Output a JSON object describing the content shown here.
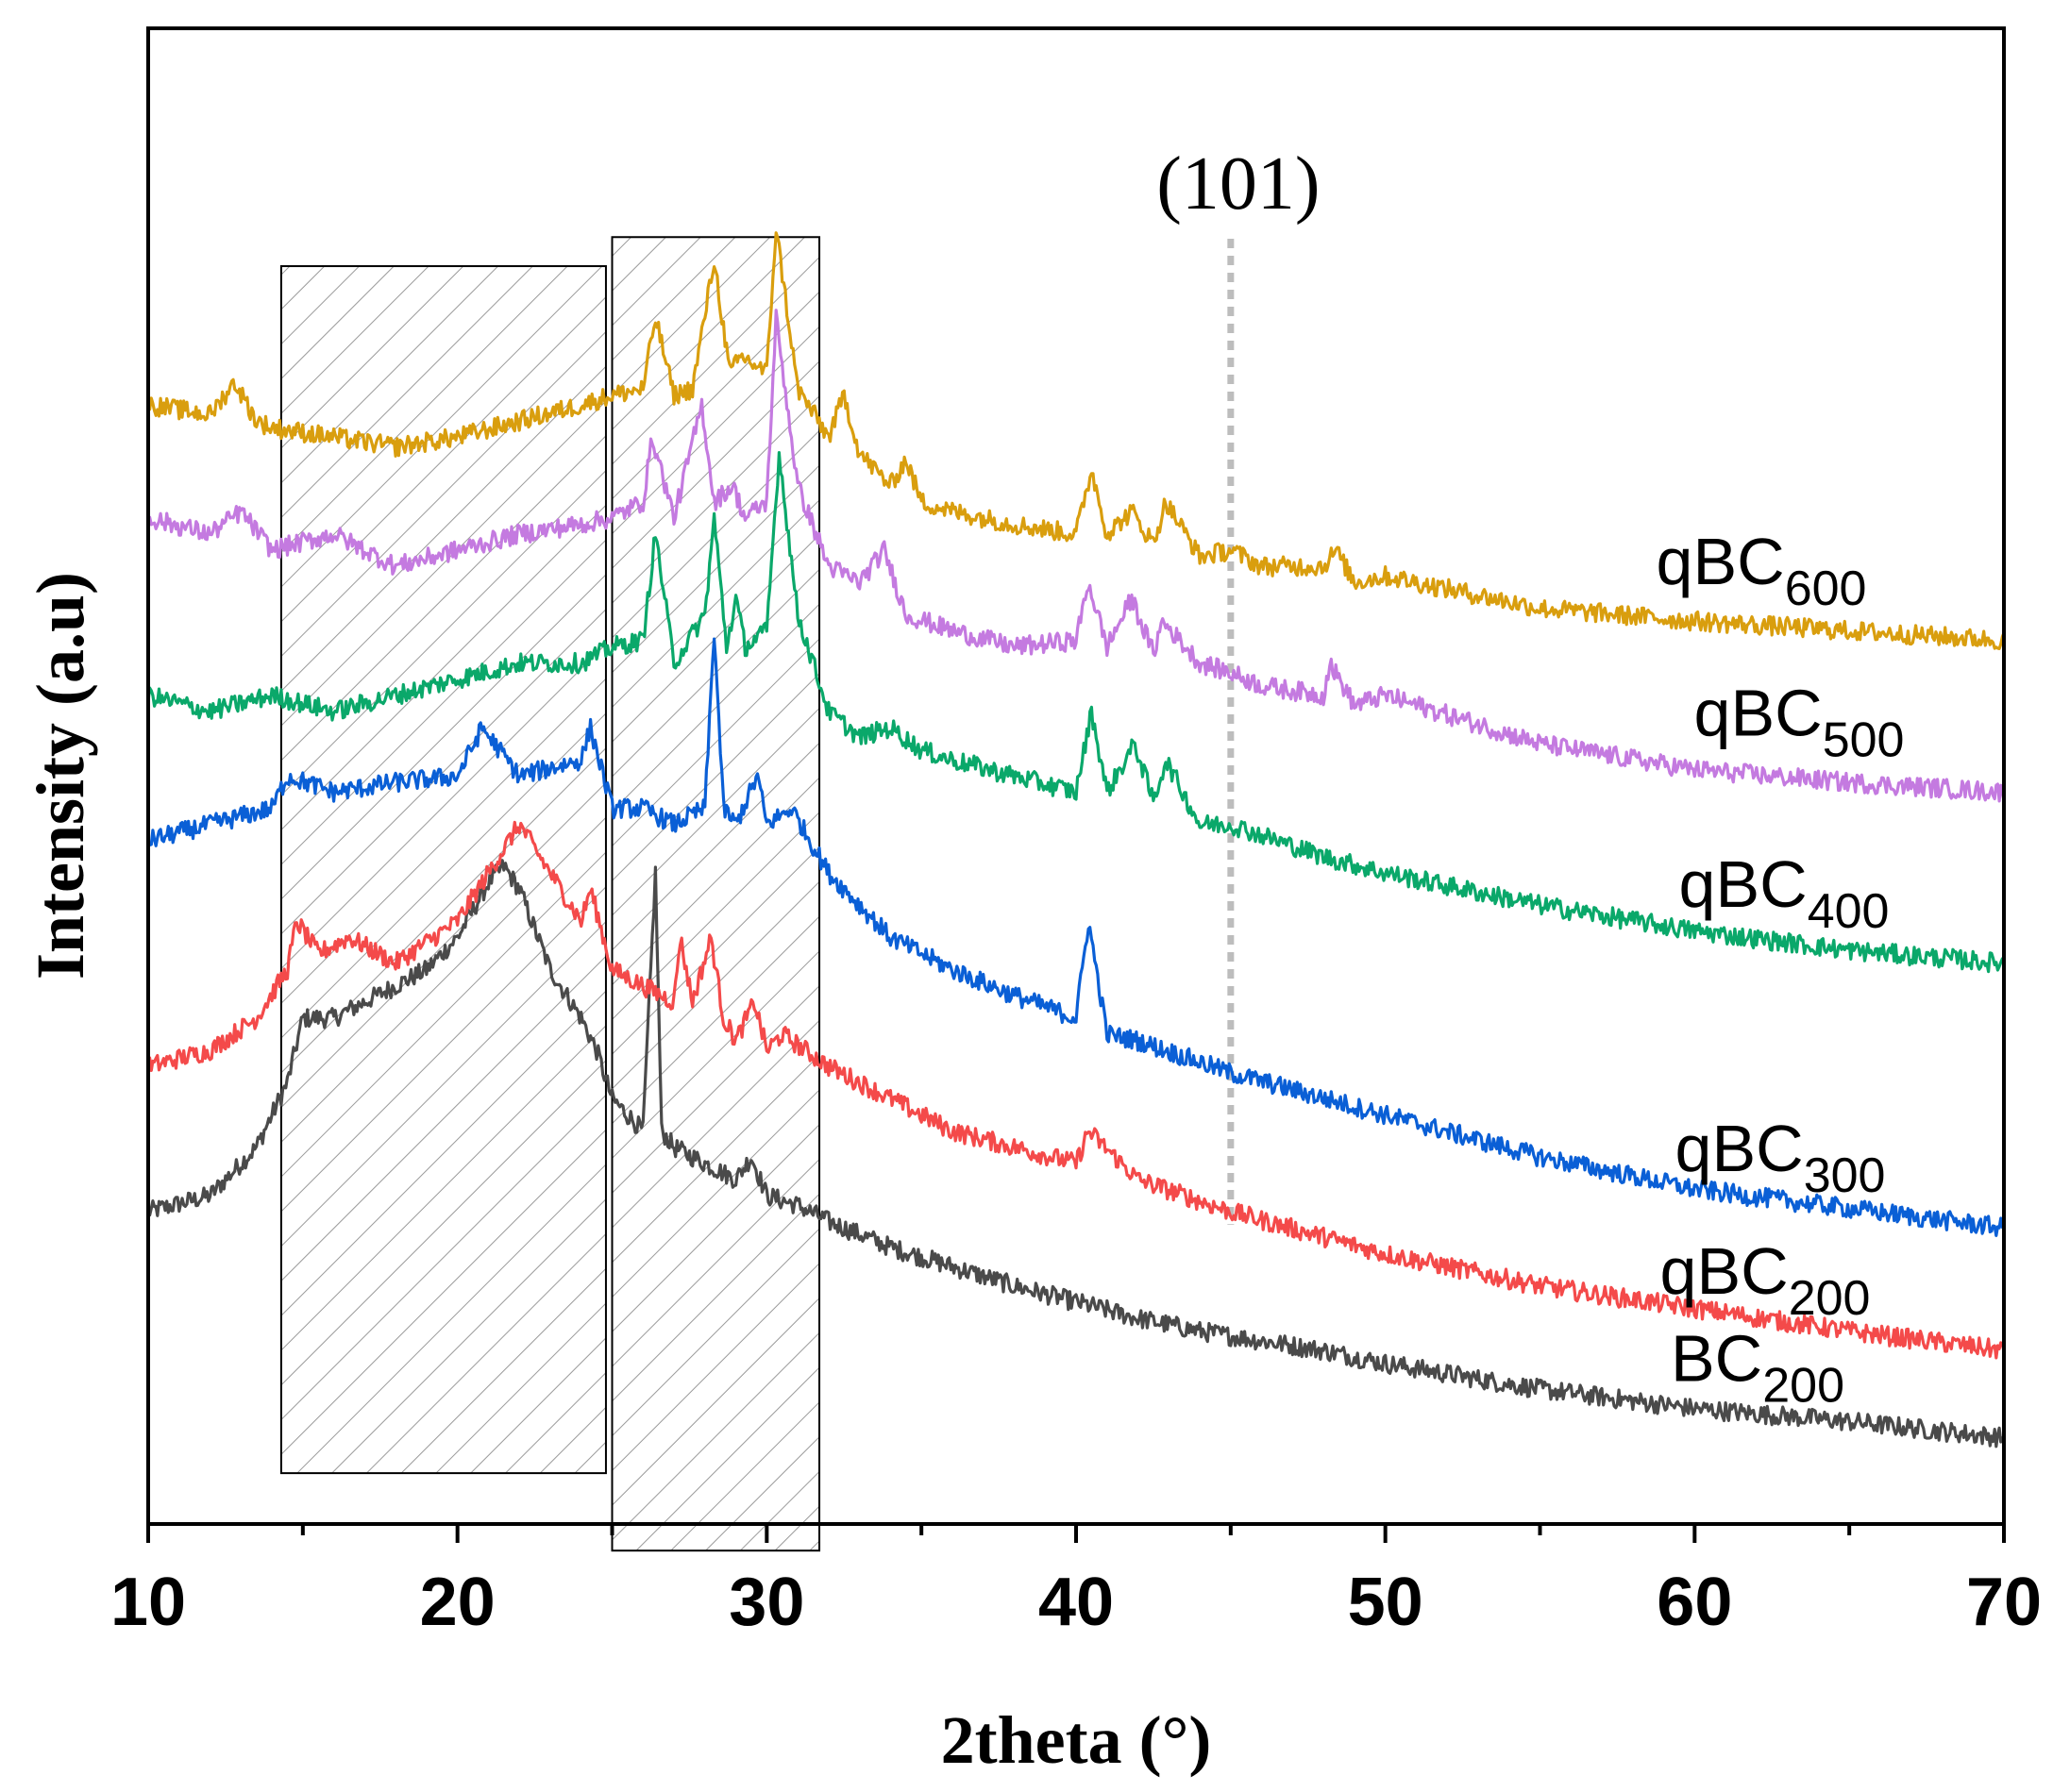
{
  "chart_data": {
    "type": "line",
    "title": "",
    "xlabel": "2theta (°)",
    "ylabel": "Intensity (a.u)",
    "xlim": [
      10,
      70
    ],
    "xticks": [
      10,
      20,
      30,
      40,
      50,
      60,
      70
    ],
    "yticks_shown": false,
    "grid": false,
    "annotations": [
      {
        "text": "(101)",
        "x": 45,
        "marker": "dashed-vertical-line",
        "ymin": 0.91,
        "ymax": 4.0
      }
    ],
    "shaded_regions": [
      {
        "x_start": 14.3,
        "x_end": 24.8,
        "y_min": 0.14,
        "y_max": 3.88,
        "pattern": "diagonal-hatch"
      },
      {
        "x_start": 25.0,
        "x_end": 31.7,
        "y_min": -0.1,
        "y_max": 3.97,
        "pattern": "diagonal-hatch"
      }
    ],
    "series": [
      {
        "name": "BC200",
        "label_main": "BC",
        "label_sub": "200",
        "color": "#4a4a4a",
        "x": [
          10,
          12,
          13.5,
          14.5,
          15,
          16,
          17,
          18,
          19,
          20,
          21,
          21.5,
          22,
          23,
          24,
          24.5,
          25,
          26,
          26.4,
          26.6,
          27,
          28,
          29,
          29.5,
          30,
          31,
          32,
          34,
          36,
          38,
          40,
          42,
          44,
          46,
          48,
          50,
          55,
          60,
          65,
          70
        ],
        "y": [
          0.95,
          1.0,
          1.15,
          1.35,
          1.55,
          1.55,
          1.6,
          1.65,
          1.7,
          1.8,
          1.97,
          2.02,
          1.95,
          1.7,
          1.55,
          1.45,
          1.3,
          1.2,
          2.0,
          1.2,
          1.15,
          1.1,
          1.05,
          1.12,
          1.0,
          0.97,
          0.92,
          0.84,
          0.78,
          0.72,
          0.67,
          0.62,
          0.58,
          0.55,
          0.52,
          0.48,
          0.4,
          0.34,
          0.3,
          0.25
        ]
      },
      {
        "name": "qBC200",
        "label_main": "qBC",
        "label_sub": "200",
        "color": "#f44a4a",
        "x": [
          10,
          12,
          13.5,
          14.5,
          14.8,
          15.5,
          16.5,
          18,
          20,
          21,
          22,
          23,
          24,
          24.3,
          25,
          26,
          27,
          27.2,
          27.6,
          28.2,
          28.6,
          29,
          29.6,
          30,
          30.5,
          32,
          34,
          36,
          38,
          40,
          40.4,
          42,
          45,
          50,
          55,
          60,
          65,
          70
        ],
        "y": [
          1.4,
          1.45,
          1.55,
          1.7,
          1.85,
          1.75,
          1.8,
          1.72,
          1.85,
          2.0,
          2.15,
          2.0,
          1.85,
          1.95,
          1.7,
          1.65,
          1.6,
          1.8,
          1.6,
          1.8,
          1.55,
          1.48,
          1.6,
          1.45,
          1.5,
          1.4,
          1.3,
          1.2,
          1.15,
          1.1,
          1.2,
          1.05,
          0.95,
          0.82,
          0.72,
          0.65,
          0.58,
          0.52
        ]
      },
      {
        "name": "qBC300",
        "label_main": "qBC",
        "label_sub": "300",
        "color": "#0a5fd6",
        "x": [
          10,
          12,
          14,
          14.5,
          16,
          18,
          20,
          20.8,
          22,
          24,
          24.3,
          25,
          26,
          27,
          28,
          28.3,
          28.6,
          29,
          29.7,
          30,
          30.8,
          32,
          34,
          36,
          38,
          40,
          40.4,
          41,
          42,
          45,
          50,
          55,
          60,
          65,
          70
        ],
        "y": [
          2.1,
          2.15,
          2.2,
          2.3,
          2.25,
          2.28,
          2.3,
          2.45,
          2.3,
          2.35,
          2.45,
          2.2,
          2.2,
          2.15,
          2.2,
          2.75,
          2.2,
          2.15,
          2.3,
          2.15,
          2.2,
          2.0,
          1.8,
          1.7,
          1.62,
          1.55,
          1.85,
          1.5,
          1.48,
          1.38,
          1.25,
          1.12,
          1.02,
          0.96,
          0.9
        ]
      },
      {
        "name": "qBC400",
        "label_main": "qBC",
        "label_sub": "400",
        "color": "#0aa86a",
        "x": [
          10,
          12,
          14,
          16,
          18,
          20,
          22,
          24,
          25,
          26,
          26.4,
          27,
          28,
          28.3,
          28.7,
          29,
          29.3,
          30,
          30.4,
          31,
          32,
          33,
          34,
          35,
          36,
          38,
          40,
          40.5,
          41,
          41.9,
          42.5,
          42.9,
          44,
          45,
          48,
          50,
          55,
          60,
          65,
          70
        ],
        "y": [
          2.55,
          2.5,
          2.55,
          2.5,
          2.55,
          2.6,
          2.65,
          2.65,
          2.7,
          2.72,
          3.05,
          2.65,
          2.8,
          3.1,
          2.7,
          2.85,
          2.7,
          2.75,
          3.3,
          2.8,
          2.5,
          2.42,
          2.45,
          2.38,
          2.35,
          2.3,
          2.25,
          2.5,
          2.25,
          2.4,
          2.22,
          2.35,
          2.15,
          2.15,
          2.05,
          2.0,
          1.9,
          1.82,
          1.76,
          1.72
        ]
      },
      {
        "name": "qBC500",
        "label_main": "qBC",
        "label_sub": "500",
        "color": "#c47ae0",
        "x": [
          10,
          12,
          13,
          14,
          16,
          18,
          20,
          22,
          24,
          25,
          26,
          26.3,
          27,
          27.9,
          28.3,
          28.9,
          29.3,
          30,
          30.3,
          31,
          32,
          33,
          33.8,
          34.5,
          36,
          38,
          40,
          40.4,
          41,
          41.8,
          42.5,
          42.8,
          44,
          45,
          46,
          48,
          48.2,
          49,
          50,
          55,
          60,
          65,
          70
        ],
        "y": [
          3.1,
          3.05,
          3.12,
          3.0,
          3.05,
          2.95,
          3.0,
          3.05,
          3.08,
          3.1,
          3.15,
          3.35,
          3.1,
          3.45,
          3.15,
          3.2,
          3.1,
          3.15,
          3.72,
          3.2,
          2.95,
          2.9,
          3.0,
          2.8,
          2.75,
          2.7,
          2.72,
          2.9,
          2.7,
          2.85,
          2.68,
          2.78,
          2.65,
          2.62,
          2.58,
          2.55,
          2.65,
          2.52,
          2.55,
          2.4,
          2.32,
          2.28,
          2.25
        ]
      },
      {
        "name": "qBC600",
        "label_main": "qBC",
        "label_sub": "600",
        "color": "#d99e0e",
        "x": [
          10,
          12,
          12.8,
          13.5,
          14,
          16,
          18,
          20,
          22,
          24,
          25,
          26,
          26.4,
          27,
          27.6,
          28.3,
          28.8,
          29.2,
          30,
          30.3,
          31,
          32,
          32.5,
          33,
          34,
          34.5,
          35,
          36,
          38,
          40,
          40.5,
          41,
          41.8,
          42.5,
          42.9,
          44,
          45,
          46,
          48,
          48.4,
          49,
          50,
          55,
          60,
          65,
          70
        ],
        "y": [
          3.45,
          3.42,
          3.52,
          3.4,
          3.38,
          3.35,
          3.32,
          3.35,
          3.4,
          3.45,
          3.48,
          3.5,
          3.72,
          3.48,
          3.5,
          3.9,
          3.55,
          3.6,
          3.55,
          4.0,
          3.5,
          3.35,
          3.48,
          3.3,
          3.2,
          3.28,
          3.15,
          3.12,
          3.08,
          3.05,
          3.25,
          3.05,
          3.12,
          3.02,
          3.15,
          2.98,
          3.0,
          2.95,
          2.95,
          3.0,
          2.9,
          2.92,
          2.82,
          2.78,
          2.75,
          2.72
        ]
      }
    ]
  }
}
